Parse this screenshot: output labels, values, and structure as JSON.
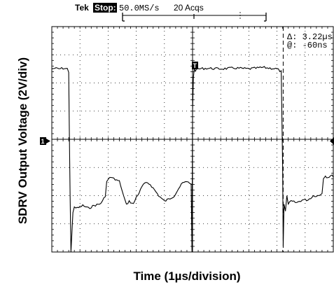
{
  "header": {
    "brand": "Tek",
    "status": "Stop:",
    "sample_rate": "50.0MS/s",
    "acquisitions": "20 Acqs"
  },
  "readout": {
    "delta": "Δ: 3.22µs",
    "at": "@: -60ns"
  },
  "markers": {
    "trigger": "T",
    "channel": "1"
  },
  "chart_data": {
    "type": "line",
    "xlabel": "Time (1µs/division)",
    "ylabel": "SDRV Output Voltage (2V/div)",
    "x_divisions": 10,
    "y_divisions": 8,
    "xlim": [
      -5,
      5
    ],
    "ylim": [
      -4,
      4
    ],
    "grid": true,
    "colors": {
      "trace": "#000000",
      "grid": "#000000",
      "background": "#ffffff"
    },
    "series": [
      {
        "x": [
          -5.0,
          -4.9,
          -4.75,
          -4.6,
          -4.45,
          -4.4,
          -4.38,
          -4.35,
          -4.32,
          -4.28,
          -4.25,
          -4.2,
          -4.1,
          -3.9,
          -3.7,
          -3.5,
          -3.3,
          -3.2,
          -3.1,
          -3.05,
          -2.98,
          -2.9,
          -2.8,
          -2.6,
          -2.45,
          -2.35,
          -2.25,
          -2.1,
          -2.0,
          -1.9,
          -1.75,
          -1.6,
          -1.5,
          -1.35,
          -1.2,
          -1.1,
          -1.0,
          -0.8,
          -0.65,
          -0.5,
          -0.35,
          -0.15,
          -0.05,
          -0.02,
          0.0,
          0.03,
          0.06,
          0.1,
          0.2,
          0.5,
          1.0,
          1.5,
          2.0,
          2.5,
          3.0,
          3.15,
          3.2,
          3.22,
          3.25,
          3.27,
          3.3,
          3.35,
          3.4,
          3.5,
          3.7,
          3.9,
          4.1,
          4.3,
          4.5,
          4.6,
          4.65,
          4.7,
          4.72,
          4.8,
          4.9,
          5.0
        ],
        "values": [
          2.5,
          2.52,
          2.5,
          2.52,
          2.5,
          2.4,
          0.5,
          -2.0,
          -4.0,
          -3.2,
          -2.6,
          -2.4,
          -2.45,
          -2.35,
          -2.45,
          -2.35,
          -2.3,
          -2.2,
          -2.0,
          -1.5,
          -1.4,
          -1.35,
          -1.4,
          -1.5,
          -2.0,
          -2.3,
          -2.2,
          -2.3,
          -2.05,
          -1.9,
          -1.6,
          -1.55,
          -1.6,
          -1.8,
          -2.0,
          -2.1,
          -2.2,
          -2.1,
          -2.0,
          -1.75,
          -1.55,
          -1.5,
          -1.6,
          -4.0,
          1.0,
          2.2,
          2.5,
          2.45,
          2.5,
          2.52,
          2.5,
          2.53,
          2.5,
          2.55,
          2.5,
          2.4,
          -1.0,
          -3.8,
          -2.3,
          -2.4,
          -2.55,
          -2.0,
          -2.3,
          -2.2,
          -2.25,
          -2.15,
          -2.15,
          -2.0,
          -2.0,
          -1.9,
          -1.4,
          -1.3,
          -1.3,
          -1.35,
          -1.3,
          -1.3
        ]
      }
    ],
    "cursors": {
      "style": "dashed",
      "x": [
        0,
        3.22
      ]
    },
    "trigger_level": 0
  }
}
